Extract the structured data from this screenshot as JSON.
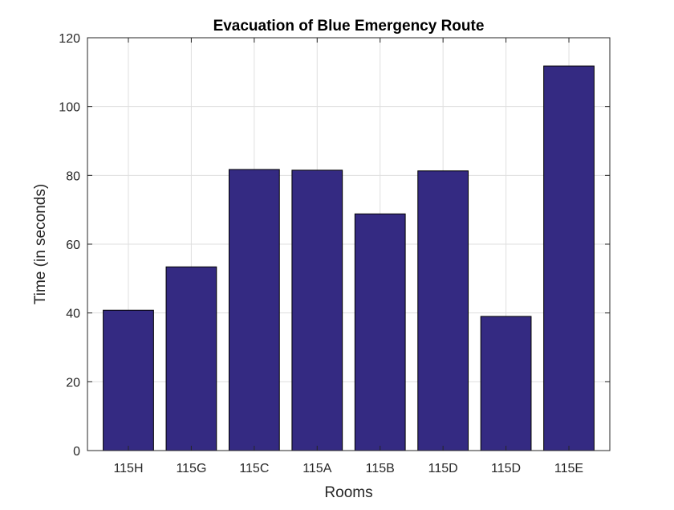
{
  "chart_data": {
    "type": "bar",
    "title": "Evacuation of Blue Emergency Route",
    "xlabel": "Rooms",
    "ylabel": "Time (in seconds)",
    "categories": [
      "115H",
      "115G",
      "115C",
      "115A",
      "115B",
      "115D",
      "115D",
      "115E"
    ],
    "values": [
      40.8,
      53.4,
      81.7,
      81.5,
      68.8,
      81.3,
      39.0,
      111.8
    ],
    "ylim": [
      0,
      120
    ],
    "yticks": [
      0,
      20,
      40,
      60,
      80,
      100,
      120
    ],
    "yticklabels": [
      "0",
      "20",
      "40",
      "60",
      "80",
      "100",
      "120"
    ],
    "grid": true,
    "colors": {
      "bar_fill": "#342A82",
      "bar_edge": "#000000",
      "grid": "#DFDFDF",
      "axis": "#262626"
    }
  }
}
